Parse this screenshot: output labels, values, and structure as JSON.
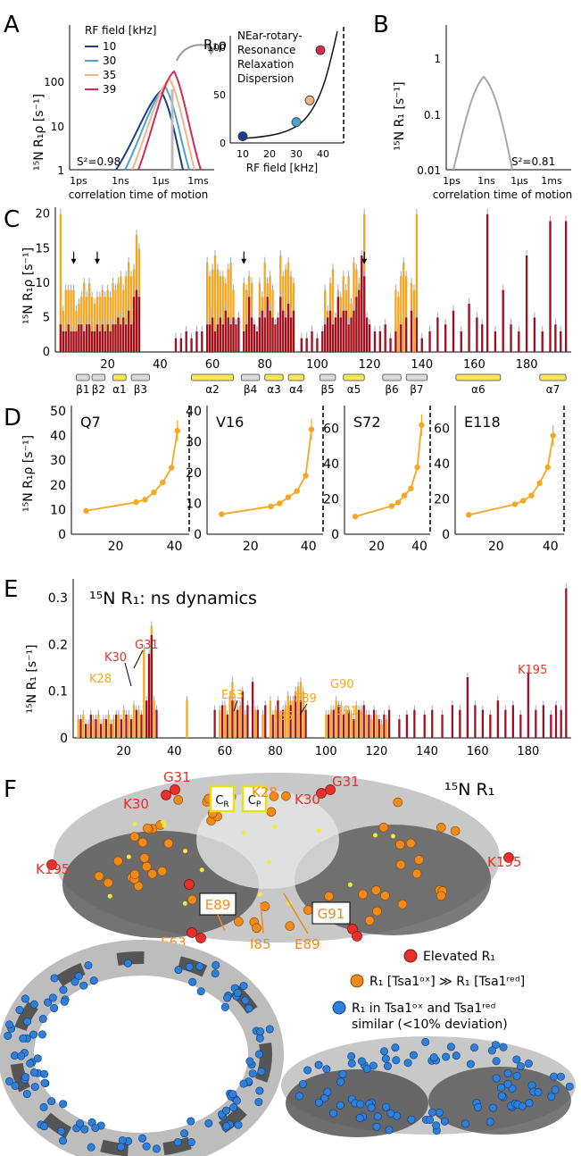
{
  "panel_labels": {
    "A": "A",
    "B": "B",
    "C": "C",
    "D": "D",
    "E": "E",
    "F": "F"
  },
  "colors": {
    "orange": "#f5a623",
    "darkred": "#a01022",
    "grey": "#a8a8a8",
    "blue10": "#1a3a8f",
    "blue30": "#4aa3c8",
    "pink35": "#f2b38a",
    "red39": "#d22a52",
    "sphere_red": "#e8302a",
    "sphere_orange": "#f08a1c",
    "sphere_blue": "#2f7fd6"
  },
  "panelA": {
    "ylabel": "¹⁵N R₁ρ [s⁻¹]",
    "xlabel": "correlation time of motion",
    "xticks": [
      "1ps",
      "1ns",
      "1µs",
      "1ms"
    ],
    "yticks": [
      "1",
      "10",
      "100"
    ],
    "s2": "S²=0.98",
    "legend_title": "RF field [kHz]",
    "legend": [
      {
        "name": "10",
        "color": "#1a3a8f"
      },
      {
        "name": "30",
        "color": "#4aa3c8"
      },
      {
        "name": "35",
        "color": "#f2b38a"
      },
      {
        "name": "39",
        "color": "#d22a52"
      }
    ],
    "inset": {
      "title": "R₁ρ",
      "text": [
        "NEar-rotary-",
        "Resonance",
        "Relaxation",
        "Dispersion"
      ],
      "xlabel": "RF field [kHz]",
      "xticks": [
        "10",
        "20",
        "30",
        "40"
      ],
      "yticks": [
        "0",
        "50",
        "100"
      ],
      "points": [
        {
          "x": 10,
          "y": 7,
          "color": "#1a3a8f"
        },
        {
          "x": 30,
          "y": 22,
          "color": "#4aa3c8"
        },
        {
          "x": 35,
          "y": 45,
          "color": "#f2b38a"
        },
        {
          "x": 39,
          "y": 98,
          "color": "#d22a52"
        }
      ]
    }
  },
  "panelB": {
    "ylabel": "¹⁵N R₁ [s⁻¹]",
    "xlabel": "correlation time of motion",
    "xticks": [
      "1ps",
      "1ns",
      "1µs",
      "1ms"
    ],
    "yticks": [
      "0.01",
      "0.1",
      "1"
    ],
    "s2": "S²=0.81"
  },
  "chart_data": [
    {
      "panel": "C",
      "type": "bar",
      "ylabel": "¹⁵N R₁ρ [s⁻¹]",
      "ylim": [
        0,
        21
      ],
      "yticks": [
        "0",
        "5",
        "10",
        "15",
        "20"
      ],
      "xticks": [
        "20",
        "40",
        "60",
        "80",
        "100",
        "120",
        "140",
        "160",
        "180"
      ],
      "xlim": [
        0,
        197
      ],
      "arrows_at": [
        7,
        16,
        72,
        118
      ],
      "series": [
        {
          "name": "ox",
          "color": "#f5a623",
          "x": [
            2,
            3,
            4,
            5,
            6,
            7,
            8,
            9,
            10,
            11,
            12,
            13,
            14,
            15,
            16,
            17,
            18,
            19,
            20,
            21,
            22,
            23,
            24,
            25,
            26,
            27,
            28,
            29,
            30,
            31,
            32,
            58,
            59,
            60,
            61,
            62,
            63,
            64,
            65,
            66,
            67,
            68,
            72,
            73,
            74,
            75,
            78,
            79,
            80,
            81,
            82,
            83,
            86,
            87,
            88,
            89,
            90,
            91,
            103,
            104,
            105,
            106,
            108,
            109,
            110,
            111,
            112,
            113,
            114,
            115,
            116,
            117,
            118,
            130,
            131,
            132,
            133,
            134,
            136,
            137,
            138
          ],
          "y": [
            20,
            6,
            9,
            9,
            9,
            9,
            6,
            7,
            8,
            10,
            8,
            10,
            8,
            7,
            8,
            8,
            9,
            8,
            9,
            8,
            10,
            9,
            10,
            11,
            9,
            11,
            13,
            11,
            12,
            17,
            15,
            13,
            11,
            12,
            14,
            12,
            11,
            11,
            10,
            12,
            13,
            9,
            10,
            9,
            11,
            10,
            10,
            8,
            13,
            10,
            11,
            9,
            14,
            11,
            12,
            13,
            11,
            10,
            9,
            6,
            10,
            12,
            9,
            8,
            11,
            9,
            11,
            7,
            13,
            12,
            10,
            11,
            20,
            9,
            8,
            11,
            13,
            11,
            10,
            9,
            20
          ]
        },
        {
          "name": "red",
          "color": "#a01022",
          "x": [
            2,
            3,
            4,
            5,
            6,
            7,
            8,
            9,
            10,
            11,
            12,
            13,
            14,
            15,
            16,
            17,
            18,
            19,
            20,
            21,
            22,
            23,
            24,
            25,
            26,
            27,
            28,
            29,
            30,
            31,
            32,
            46,
            48,
            50,
            52,
            54,
            56,
            58,
            59,
            60,
            61,
            62,
            63,
            64,
            65,
            66,
            67,
            68,
            69,
            70,
            72,
            73,
            74,
            75,
            76,
            77,
            78,
            79,
            80,
            81,
            82,
            83,
            84,
            85,
            86,
            87,
            88,
            89,
            90,
            91,
            94,
            96,
            98,
            100,
            102,
            103,
            104,
            105,
            106,
            107,
            108,
            109,
            110,
            111,
            112,
            113,
            114,
            115,
            116,
            117,
            118,
            119,
            120,
            122,
            124,
            126,
            128,
            130,
            132,
            134,
            136,
            138,
            140,
            143,
            146,
            149,
            152,
            155,
            158,
            161,
            163,
            165,
            168,
            171,
            174,
            177,
            180,
            183,
            186,
            189,
            191,
            193,
            195
          ],
          "y": [
            4,
            3,
            3,
            4,
            3,
            3,
            3,
            4,
            4,
            3,
            4,
            4,
            3,
            3,
            4,
            3,
            4,
            3,
            4,
            3,
            4,
            4,
            5,
            4,
            5,
            4,
            6,
            4,
            8,
            9,
            8,
            2,
            2,
            3,
            2,
            3,
            3,
            4,
            4,
            5,
            3,
            4,
            5,
            4,
            6,
            5,
            4,
            5,
            4,
            5,
            3,
            4,
            8,
            5,
            4,
            3,
            5,
            6,
            5,
            8,
            6,
            5,
            4,
            5,
            8,
            6,
            5,
            7,
            5,
            6,
            2,
            2,
            3,
            2,
            3,
            4,
            5,
            6,
            4,
            5,
            8,
            5,
            6,
            6,
            4,
            5,
            6,
            8,
            9,
            14,
            11,
            5,
            4,
            3,
            3,
            4,
            2,
            3,
            4,
            5,
            6,
            5,
            2,
            3,
            5,
            4,
            6,
            3,
            7,
            5,
            4,
            20,
            3,
            9,
            4,
            3,
            14,
            5,
            3,
            19,
            4,
            3,
            19
          ]
        }
      ],
      "sse": [
        {
          "name": "β1",
          "from": 8,
          "to": 13,
          "color": "#d9d9d9"
        },
        {
          "name": "β2",
          "from": 14,
          "to": 19,
          "color": "#d9d9d9"
        },
        {
          "name": "α1",
          "from": 22,
          "to": 27,
          "color": "#f7e55a"
        },
        {
          "name": "β3",
          "from": 29,
          "to": 36,
          "color": "#d9d9d9"
        },
        {
          "name": "α2",
          "from": 52,
          "to": 68,
          "color": "#f7e55a"
        },
        {
          "name": "β4",
          "from": 71,
          "to": 78,
          "color": "#d9d9d9"
        },
        {
          "name": "α3",
          "from": 80,
          "to": 87,
          "color": "#f7e55a"
        },
        {
          "name": "α4",
          "from": 89,
          "to": 95,
          "color": "#f7e55a"
        },
        {
          "name": "β5",
          "from": 101,
          "to": 107,
          "color": "#d9d9d9"
        },
        {
          "name": "α5",
          "from": 110,
          "to": 118,
          "color": "#f7e55a"
        },
        {
          "name": "β6",
          "from": 125,
          "to": 132,
          "color": "#d9d9d9"
        },
        {
          "name": "β7",
          "from": 134,
          "to": 142,
          "color": "#d9d9d9"
        },
        {
          "name": "α6",
          "from": 153,
          "to": 170,
          "color": "#f7e55a"
        },
        {
          "name": "α7",
          "from": 185,
          "to": 195,
          "color": "#f7e55a"
        }
      ]
    },
    {
      "panel": "D",
      "type": "line",
      "ylabel": "¹⁵N R₁ρ [s⁻¹]",
      "subplots": [
        {
          "title": "Q7",
          "ylim": [
            0,
            50
          ],
          "yticks": [
            "0",
            "10",
            "20",
            "30",
            "40",
            "50"
          ],
          "xticks": [
            "20",
            "40"
          ],
          "x": [
            10,
            27,
            30,
            33,
            36,
            39,
            41
          ],
          "y": [
            9.5,
            13,
            14,
            17,
            21,
            27,
            42
          ]
        },
        {
          "title": "V16",
          "ylim": [
            0,
            40
          ],
          "yticks": [
            "0",
            "10",
            "20",
            "30",
            "40"
          ],
          "xticks": [
            "20",
            "40"
          ],
          "x": [
            10,
            27,
            30,
            33,
            36,
            39,
            41
          ],
          "y": [
            6.5,
            9,
            10,
            12,
            14,
            19,
            34
          ]
        },
        {
          "title": "S72",
          "ylim": [
            0,
            70
          ],
          "yticks": [
            "0",
            "20",
            "40",
            "60"
          ],
          "xticks": [
            "20",
            "40"
          ],
          "x": [
            10,
            27,
            30,
            33,
            36,
            39,
            41
          ],
          "y": [
            10,
            16,
            18,
            22,
            26,
            38,
            62
          ]
        },
        {
          "title": "E118",
          "ylim": [
            0,
            70
          ],
          "yticks": [
            "0",
            "20",
            "40",
            "60"
          ],
          "xticks": [
            "20",
            "40"
          ],
          "x": [
            10,
            27,
            30,
            33,
            36,
            39,
            41
          ],
          "y": [
            11,
            17,
            19,
            22,
            29,
            38,
            56
          ]
        }
      ]
    },
    {
      "panel": "E",
      "type": "bar",
      "title": "¹⁵N R₁: ns dynamics",
      "ylabel": "¹⁵N R₁ [s⁻¹]",
      "ylim": [
        0,
        0.34
      ],
      "yticks": [
        "0",
        "0.1",
        "0.2",
        "0.3"
      ],
      "xticks": [
        "20",
        "40",
        "60",
        "80",
        "100",
        "120",
        "140",
        "160",
        "180"
      ],
      "xlim": [
        0,
        197
      ],
      "series": [
        {
          "name": "ox",
          "color": "#f5a623",
          "x": [
            2,
            4,
            6,
            8,
            10,
            12,
            14,
            16,
            18,
            20,
            22,
            24,
            26,
            28,
            30,
            31,
            32,
            45,
            58,
            60,
            62,
            63,
            64,
            65,
            66,
            68,
            72,
            75,
            78,
            80,
            82,
            84,
            85,
            86,
            87,
            88,
            89,
            90,
            91,
            100,
            102,
            104,
            106,
            108,
            110,
            112,
            114,
            116,
            118,
            120,
            122,
            124
          ],
          "y": [
            0.04,
            0.05,
            0.03,
            0.04,
            0.05,
            0.04,
            0.05,
            0.04,
            0.05,
            0.06,
            0.05,
            0.07,
            0.06,
            0.19,
            0.17,
            0.24,
            0.08,
            0.08,
            0.06,
            0.07,
            0.09,
            0.12,
            0.08,
            0.06,
            0.07,
            0.05,
            0.06,
            0.05,
            0.08,
            0.06,
            0.05,
            0.07,
            0.09,
            0.08,
            0.08,
            0.1,
            0.11,
            0.12,
            0.1,
            0.05,
            0.06,
            0.08,
            0.07,
            0.06,
            0.05,
            0.07,
            0.06,
            0.05,
            0.04,
            0.05,
            0.03,
            0.04
          ]
        },
        {
          "name": "red",
          "color": "#a01022",
          "x": [
            3,
            5,
            7,
            9,
            11,
            13,
            15,
            17,
            19,
            21,
            23,
            25,
            27,
            29,
            30,
            31,
            33,
            56,
            59,
            61,
            63,
            65,
            67,
            69,
            71,
            73,
            76,
            79,
            81,
            83,
            86,
            88,
            90,
            92,
            101,
            103,
            105,
            107,
            109,
            111,
            113,
            115,
            117,
            119,
            121,
            123,
            125,
            129,
            132,
            135,
            139,
            142,
            146,
            150,
            153,
            156,
            159,
            162,
            165,
            168,
            171,
            174,
            177,
            180,
            183,
            186,
            189,
            191,
            193,
            195
          ],
          "y": [
            0.04,
            0.03,
            0.05,
            0.04,
            0.03,
            0.04,
            0.03,
            0.05,
            0.04,
            0.05,
            0.04,
            0.06,
            0.05,
            0.08,
            0.18,
            0.22,
            0.06,
            0.06,
            0.07,
            0.05,
            0.08,
            0.06,
            0.1,
            0.07,
            0.12,
            0.06,
            0.07,
            0.05,
            0.08,
            0.06,
            0.07,
            0.09,
            0.08,
            0.06,
            0.05,
            0.06,
            0.07,
            0.05,
            0.06,
            0.04,
            0.06,
            0.07,
            0.05,
            0.06,
            0.04,
            0.05,
            0.06,
            0.04,
            0.05,
            0.06,
            0.05,
            0.06,
            0.05,
            0.07,
            0.06,
            0.13,
            0.07,
            0.06,
            0.05,
            0.08,
            0.06,
            0.07,
            0.05,
            0.14,
            0.06,
            0.07,
            0.05,
            0.07,
            0.06,
            0.32
          ]
        }
      ],
      "annotations": [
        {
          "text": "K30",
          "color": "#e8302a"
        },
        {
          "text": "G31",
          "color": "#e8302a"
        },
        {
          "text": "K28",
          "color": "#f5a623"
        },
        {
          "text": "E63",
          "color": "#f5a623"
        },
        {
          "text": "E89",
          "color": "#f5a623"
        },
        {
          "text": "G90",
          "color": "#f5a623"
        },
        {
          "text": "I85",
          "color": "#f5a623"
        },
        {
          "text": "G91",
          "color": "#f5a623"
        },
        {
          "text": "K195",
          "color": "#e8302a"
        }
      ]
    }
  ],
  "panelF": {
    "title": "¹⁵N R₁",
    "labels_red": [
      "G31",
      "K30",
      "K30",
      "G31",
      "K195",
      "K195"
    ],
    "labels_orange": [
      "K28",
      "E89",
      "E63",
      "I85",
      "E89",
      "G91"
    ],
    "boxes": [
      "C",
      "C"
    ],
    "box_subs": [
      "R",
      "P"
    ],
    "legend": [
      {
        "text": "Elevated R₁",
        "color": "#e8302a"
      },
      {
        "text": "R₁ [Tsa1ᵒˣ] ≫ R₁ [Tsa1ʳᵉᵈ]",
        "color": "#f08a1c"
      },
      {
        "text": "R₁ in Tsa1ᵒˣ and Tsa1ʳᵉᵈ",
        "color": "#2f7fd6"
      },
      {
        "text": "similar (<10% deviation)",
        "color": ""
      }
    ]
  }
}
